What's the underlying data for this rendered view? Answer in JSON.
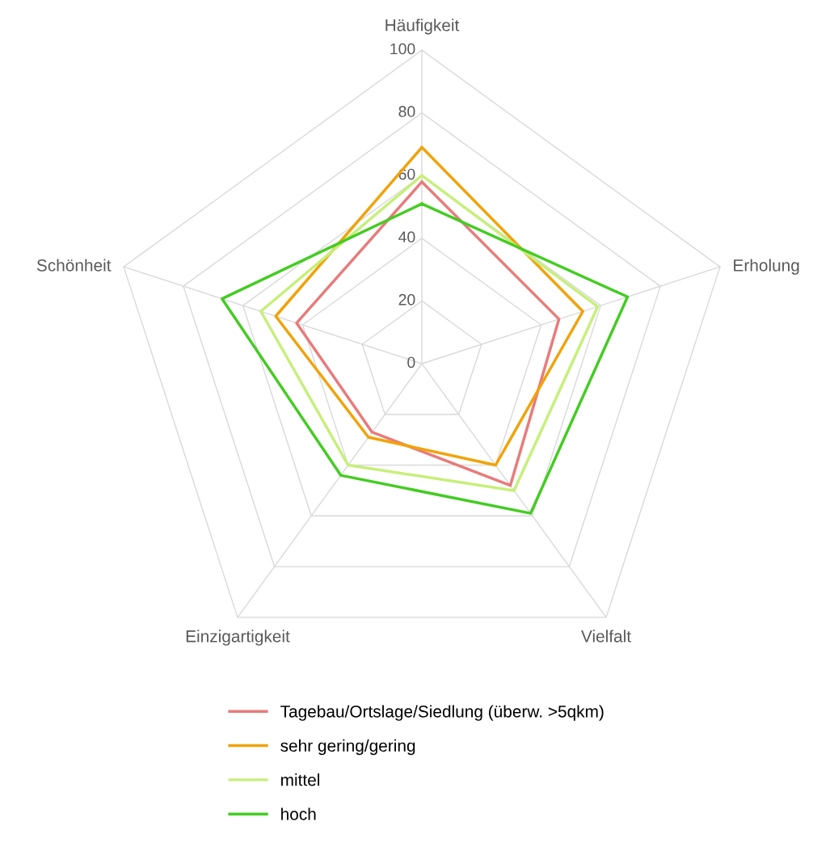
{
  "chart_data": {
    "type": "radar",
    "categories": [
      "Häufigkeit",
      "Erholung",
      "Vielfalt",
      "Einzigartigkeit",
      "Schönheit"
    ],
    "ylim": [
      0,
      100
    ],
    "yticks": [
      0,
      20,
      40,
      60,
      80,
      100
    ],
    "grid": true,
    "legend": "bottom",
    "marker": "none",
    "line_style": "solid",
    "series": [
      {
        "name": "Tagebau/Ortslage/Siedlung (überw. >5qkm)",
        "color": "#e87b7b",
        "values": [
          58,
          46,
          48,
          27,
          42
        ]
      },
      {
        "name": "sehr gering/gering",
        "color": "#f0a30a",
        "values": [
          69,
          54,
          40,
          29,
          49
        ]
      },
      {
        "name": "mittel",
        "color": "#c6ef7a",
        "values": [
          60,
          59,
          50,
          40,
          54
        ]
      },
      {
        "name": "hoch",
        "color": "#44cc22",
        "values": [
          51,
          69,
          59,
          44,
          67
        ]
      }
    ]
  }
}
